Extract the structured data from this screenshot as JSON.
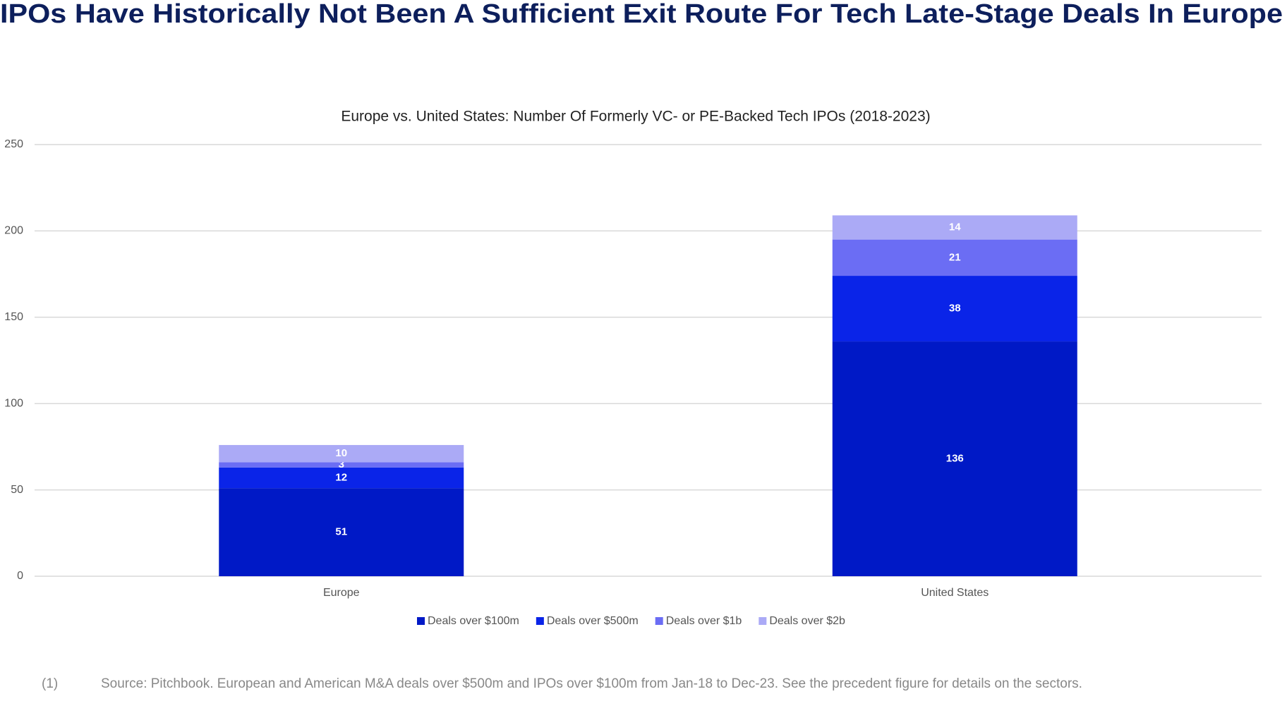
{
  "heading": "IPOs Have Historically Not Been A Sufficient Exit Route For Tech Late-Stage Deals In Europe",
  "chart_data": {
    "type": "stacked_bar",
    "title": "Europe vs. United States: Number Of Formerly VC- or PE-Backed Tech IPOs (2018-2023)",
    "categories": [
      "Europe",
      "United States"
    ],
    "series": [
      {
        "name": "Deals over $100m",
        "color": "#0019c6",
        "values": [
          51,
          136
        ]
      },
      {
        "name": "Deals over $500m",
        "color": "#0a24e8",
        "values": [
          12,
          38
        ]
      },
      {
        "name": "Deals over $1b",
        "color": "#6b6df4",
        "values": [
          3,
          21
        ]
      },
      {
        "name": "Deals over $2b",
        "color": "#abaaf6",
        "values": [
          10,
          14
        ]
      }
    ],
    "ylim": [
      0,
      250
    ],
    "yticks": [
      0,
      50,
      100,
      150,
      200,
      250
    ],
    "grid": true,
    "legend": "bottom"
  },
  "footnote": {
    "number": "(1)",
    "text": "Source: Pitchbook. European and American M&A deals over $500m and IPOs over $100m from Jan-18 to Dec-23. See the precedent figure for details on the sectors."
  }
}
